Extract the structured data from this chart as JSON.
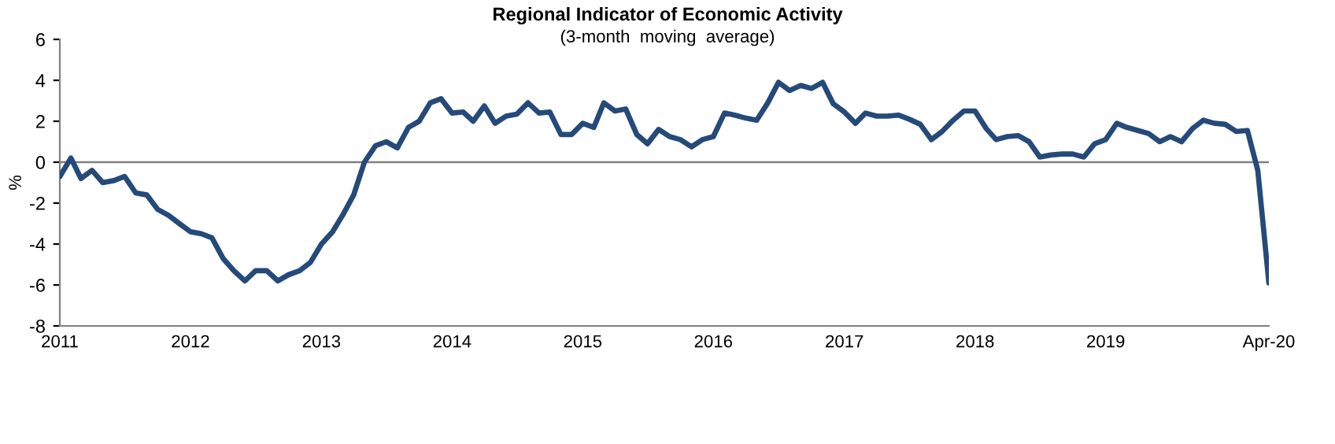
{
  "chart_data": {
    "type": "line",
    "title": "Regional Indicator of Economic Activity",
    "subtitle": "(3-month  moving  average)",
    "ylabel": "%",
    "x": [
      "2011-01",
      "2011-02",
      "2011-03",
      "2011-04",
      "2011-05",
      "2011-06",
      "2011-07",
      "2011-08",
      "2011-09",
      "2011-10",
      "2011-11",
      "2011-12",
      "2012-01",
      "2012-02",
      "2012-03",
      "2012-04",
      "2012-05",
      "2012-06",
      "2012-07",
      "2012-08",
      "2012-09",
      "2012-10",
      "2012-11",
      "2012-12",
      "2013-01",
      "2013-02",
      "2013-03",
      "2013-04",
      "2013-05",
      "2013-06",
      "2013-07",
      "2013-08",
      "2013-09",
      "2013-10",
      "2013-11",
      "2013-12",
      "2014-01",
      "2014-02",
      "2014-03",
      "2014-04",
      "2014-05",
      "2014-06",
      "2014-07",
      "2014-08",
      "2014-09",
      "2014-10",
      "2014-11",
      "2014-12",
      "2015-01",
      "2015-02",
      "2015-03",
      "2015-04",
      "2015-05",
      "2015-06",
      "2015-07",
      "2015-08",
      "2015-09",
      "2015-10",
      "2015-11",
      "2015-12",
      "2016-01",
      "2016-02",
      "2016-03",
      "2016-04",
      "2016-05",
      "2016-06",
      "2016-07",
      "2016-08",
      "2016-09",
      "2016-10",
      "2016-11",
      "2016-12",
      "2017-01",
      "2017-02",
      "2017-03",
      "2017-04",
      "2017-05",
      "2017-06",
      "2017-07",
      "2017-08",
      "2017-09",
      "2017-10",
      "2017-11",
      "2017-12",
      "2018-01",
      "2018-02",
      "2018-03",
      "2018-04",
      "2018-05",
      "2018-06",
      "2018-07",
      "2018-08",
      "2018-09",
      "2018-10",
      "2018-11",
      "2018-12",
      "2019-01",
      "2019-02",
      "2019-03",
      "2019-04",
      "2019-05",
      "2019-06",
      "2019-07",
      "2019-08",
      "2019-09",
      "2019-10",
      "2019-11",
      "2019-12",
      "2020-01",
      "2020-02",
      "2020-03",
      "2020-04"
    ],
    "series": [
      {
        "color": "#254a7a",
        "values": [
          -0.7,
          0.2,
          -0.8,
          -0.4,
          -1.0,
          -0.9,
          -0.7,
          -1.5,
          -1.6,
          -2.3,
          -2.6,
          -3.0,
          -3.4,
          -3.5,
          -3.7,
          -4.7,
          -5.3,
          -5.8,
          -5.3,
          -5.3,
          -5.8,
          -5.5,
          -5.3,
          -4.9,
          -4.0,
          -3.4,
          -2.6,
          -1.6,
          0.0,
          0.8,
          1.0,
          0.7,
          1.7,
          2.0,
          2.9,
          3.1,
          2.4,
          2.45,
          2.0,
          2.75,
          1.9,
          2.25,
          2.35,
          2.9,
          2.4,
          2.45,
          1.35,
          1.35,
          1.9,
          1.7,
          2.9,
          2.5,
          2.6,
          1.35,
          0.9,
          1.6,
          1.25,
          1.1,
          0.75,
          1.1,
          1.25,
          2.4,
          2.3,
          2.15,
          2.05,
          2.9,
          3.9,
          3.5,
          3.75,
          3.6,
          3.9,
          2.85,
          2.45,
          1.9,
          2.4,
          2.25,
          2.25,
          2.3,
          2.1,
          1.85,
          1.1,
          1.5,
          2.05,
          2.5,
          2.5,
          1.65,
          1.1,
          1.25,
          1.3,
          1.0,
          0.25,
          0.35,
          0.4,
          0.4,
          0.25,
          0.9,
          1.1,
          1.9,
          1.7,
          1.55,
          1.4,
          1.0,
          1.25,
          1.0,
          1.65,
          2.05,
          1.9,
          1.85,
          1.5,
          1.55,
          -0.4,
          -5.9
        ]
      }
    ],
    "ylim": [
      -8,
      6
    ],
    "yticks": [
      -8,
      -6,
      -4,
      -2,
      0,
      2,
      4,
      6
    ],
    "xlim": [
      "2011-01",
      "2020-04"
    ],
    "xticks": [
      {
        "value": "2011-01",
        "label": "2011"
      },
      {
        "value": "2012-01",
        "label": "2012"
      },
      {
        "value": "2013-01",
        "label": "2013"
      },
      {
        "value": "2014-01",
        "label": "2014"
      },
      {
        "value": "2015-01",
        "label": "2015"
      },
      {
        "value": "2016-01",
        "label": "2016"
      },
      {
        "value": "2017-01",
        "label": "2017"
      },
      {
        "value": "2018-01",
        "label": "2018"
      },
      {
        "value": "2019-01",
        "label": "2019"
      },
      {
        "value": "2020-04",
        "label": "Apr-20"
      }
    ],
    "ref_lines": [
      {
        "axis": "y",
        "value": 0,
        "color": "#808080"
      }
    ],
    "grid": false,
    "legend": false
  }
}
